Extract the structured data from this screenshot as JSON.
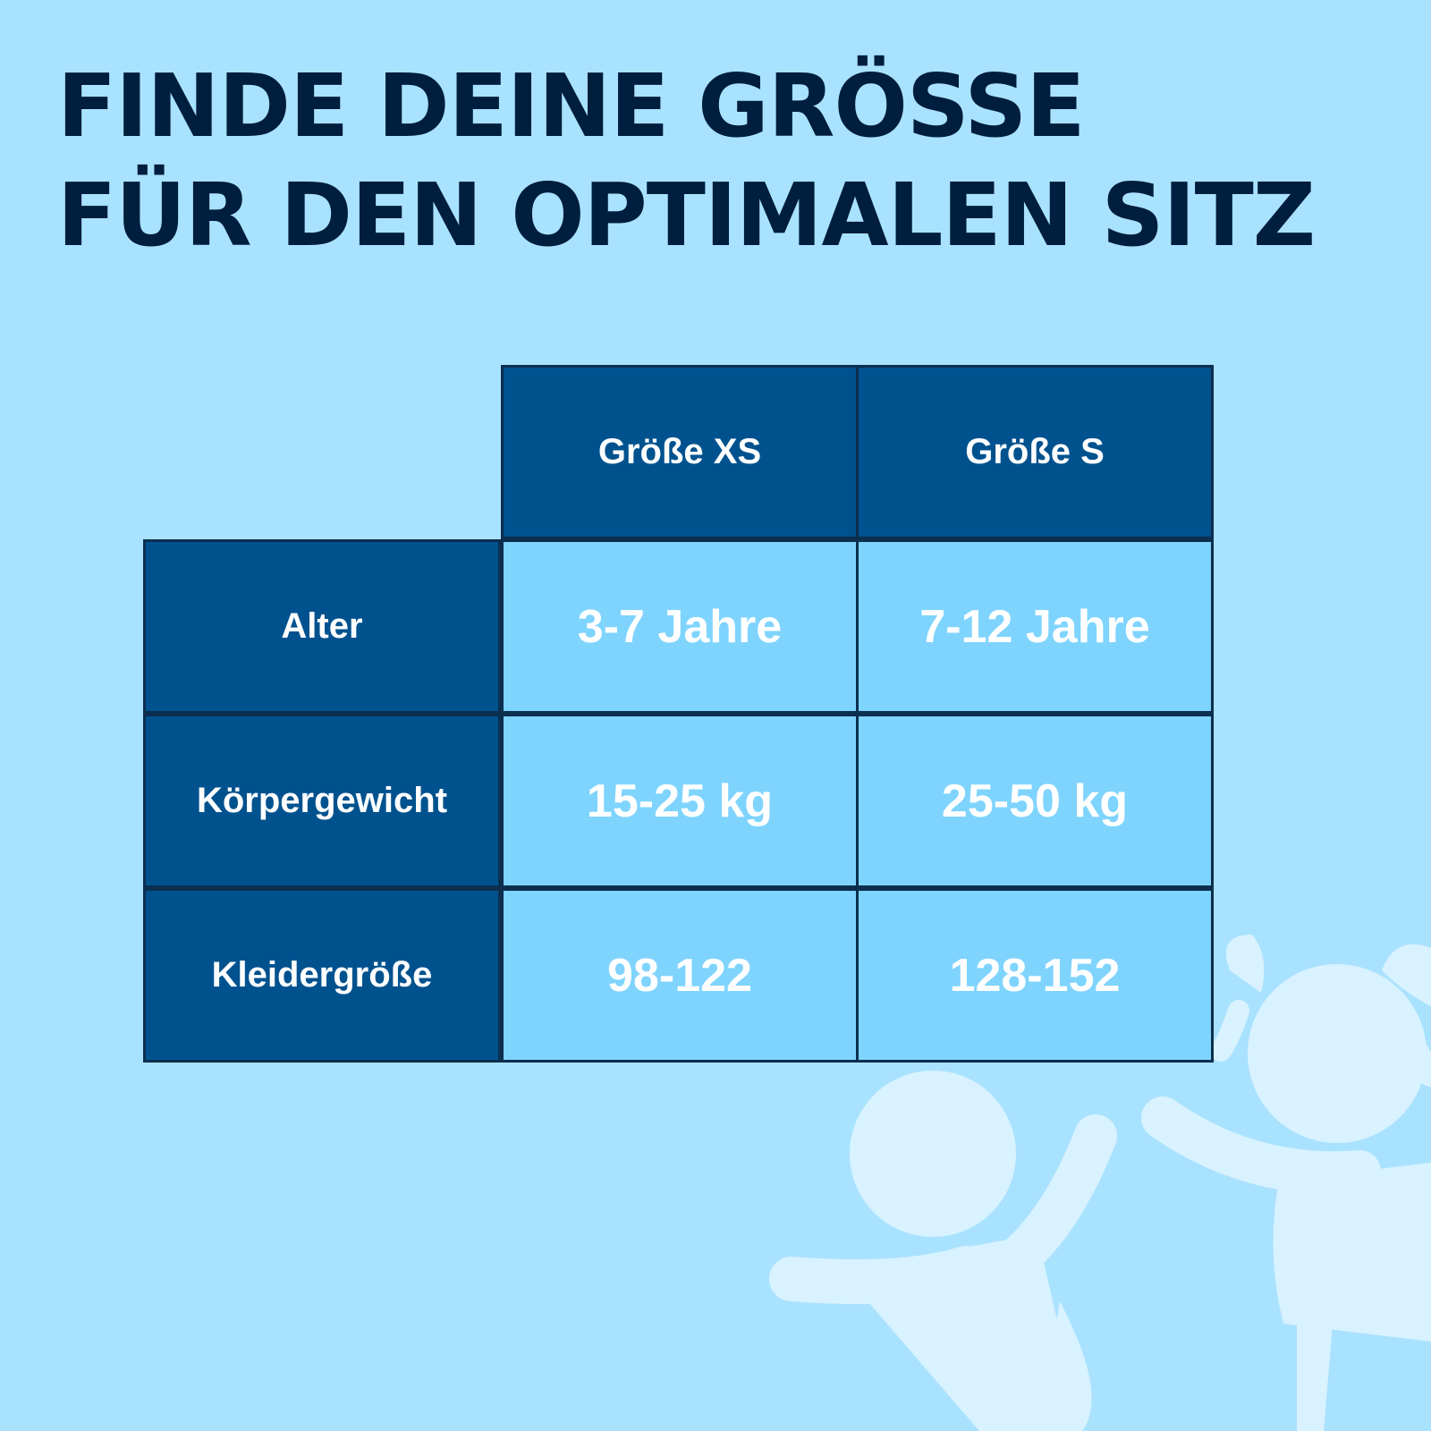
{
  "title": {
    "line1": "FINDE DEINE GRÖSSE",
    "line2": "FÜR DEN OPTIMALEN SITZ"
  },
  "table": {
    "columns": [
      "Größe XS",
      "Größe S"
    ],
    "rows": [
      {
        "label": "Alter",
        "values": [
          "3-7 Jahre",
          "7-12 Jahre"
        ]
      },
      {
        "label": "Körpergewicht",
        "values": [
          "15-25 kg",
          "25-50 kg"
        ]
      },
      {
        "label": "Kleidergröße",
        "values": [
          "98-122",
          "128-152"
        ]
      }
    ]
  },
  "colors": {
    "background": "#a9e2fe",
    "title": "#001e3d",
    "header_cell": "#00528f",
    "value_cell": "#7fd4fe",
    "border": "#0c2e4f",
    "illustration": "#d9f2ff"
  },
  "decoration": {
    "icon": "two-children-silhouette-icon"
  }
}
